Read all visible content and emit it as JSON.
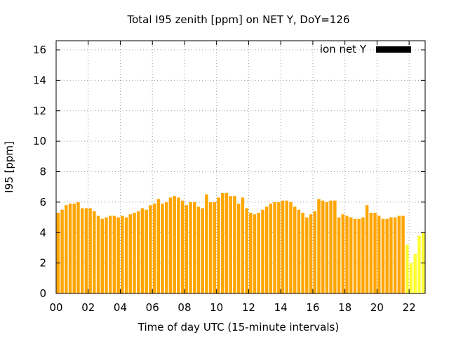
{
  "chart_data": {
    "type": "bar",
    "title": "Total I95 zenith [ppm] on NET Y, DoY=126",
    "xlabel": "Time of day UTC (15-minute intervals)",
    "ylabel": "I95 [ppm]",
    "ylim": [
      0,
      16.6
    ],
    "yticks": [
      0,
      2,
      4,
      6,
      8,
      10,
      12,
      14,
      16
    ],
    "xlim": [
      0,
      23
    ],
    "xticks": [
      0,
      2,
      4,
      6,
      8,
      10,
      12,
      14,
      16,
      18,
      20,
      22
    ],
    "xtick_labels": [
      "00",
      "02",
      "04",
      "06",
      "08",
      "10",
      "12",
      "14",
      "16",
      "18",
      "20",
      "22"
    ],
    "grid": true,
    "legend": {
      "placement": "top-right",
      "entries": [
        {
          "label": "ion net Y",
          "color": "#000000"
        }
      ]
    },
    "colors": {
      "normal": "#ffa500",
      "low": "#ffff33"
    },
    "interval_hours": 0.25,
    "series": [
      {
        "name": "ion net Y",
        "values": [
          5.3,
          5.5,
          5.8,
          5.9,
          5.9,
          6.0,
          5.6,
          5.6,
          5.6,
          5.4,
          5.1,
          4.9,
          5.0,
          5.1,
          5.1,
          5.0,
          5.1,
          5.0,
          5.2,
          5.3,
          5.4,
          5.6,
          5.5,
          5.8,
          5.9,
          6.2,
          5.9,
          6.0,
          6.3,
          6.4,
          6.3,
          6.1,
          5.8,
          6.0,
          6.0,
          5.7,
          5.6,
          6.5,
          6.0,
          6.0,
          6.3,
          6.6,
          6.6,
          6.4,
          6.4,
          5.9,
          6.3,
          5.6,
          5.3,
          5.2,
          5.3,
          5.5,
          5.7,
          5.9,
          6.0,
          6.0,
          6.1,
          6.1,
          6.0,
          5.7,
          5.5,
          5.3,
          5.0,
          5.2,
          5.4,
          6.2,
          6.1,
          6.0,
          6.1,
          6.1,
          5.0,
          5.2,
          5.1,
          5.0,
          4.9,
          4.9,
          5.0,
          5.8,
          5.3,
          5.3,
          5.1,
          4.9,
          4.9,
          5.0,
          5.0,
          5.1,
          5.1,
          3.2,
          2.0,
          2.6,
          3.8,
          4.0
        ],
        "low_flag": [
          false,
          false,
          false,
          false,
          false,
          false,
          false,
          false,
          false,
          false,
          false,
          false,
          false,
          false,
          false,
          false,
          false,
          false,
          false,
          false,
          false,
          false,
          false,
          false,
          false,
          false,
          false,
          false,
          false,
          false,
          false,
          false,
          false,
          false,
          false,
          false,
          false,
          false,
          false,
          false,
          false,
          false,
          false,
          false,
          false,
          false,
          false,
          false,
          false,
          false,
          false,
          false,
          false,
          false,
          false,
          false,
          false,
          false,
          false,
          false,
          false,
          false,
          false,
          false,
          false,
          false,
          false,
          false,
          false,
          false,
          false,
          false,
          false,
          false,
          false,
          false,
          false,
          false,
          false,
          false,
          false,
          false,
          false,
          false,
          false,
          false,
          false,
          true,
          true,
          true,
          true,
          true
        ]
      }
    ]
  }
}
